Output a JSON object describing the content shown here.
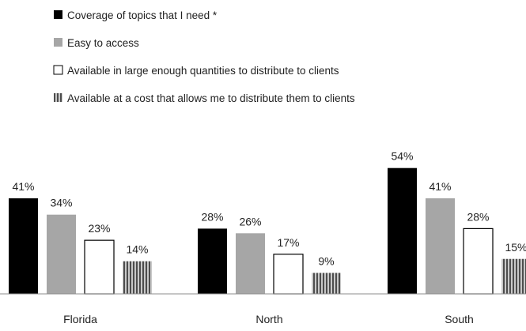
{
  "chart_data": {
    "type": "bar",
    "categories": [
      "Florida",
      "North",
      "South"
    ],
    "series": [
      {
        "name": "Coverage of topics that I need *",
        "values": [
          41,
          28,
          54
        ],
        "fill": "#000000",
        "pattern": "solid"
      },
      {
        "name": "Easy to access",
        "values": [
          34,
          26,
          41
        ],
        "fill": "#a6a6a6",
        "pattern": "solid"
      },
      {
        "name": "Available in large enough quantities to distribute to clients",
        "values": [
          23,
          17,
          28
        ],
        "fill": "#ffffff",
        "pattern": "outline"
      },
      {
        "name": "Available at a cost that allows me to distribute them to clients",
        "values": [
          14,
          9,
          15
        ],
        "fill": "#7f7f7f",
        "pattern": "vertical-stripes"
      }
    ],
    "value_suffix": "%",
    "legend_position": "top-left",
    "grid": false,
    "ylim": [
      0,
      60
    ]
  }
}
